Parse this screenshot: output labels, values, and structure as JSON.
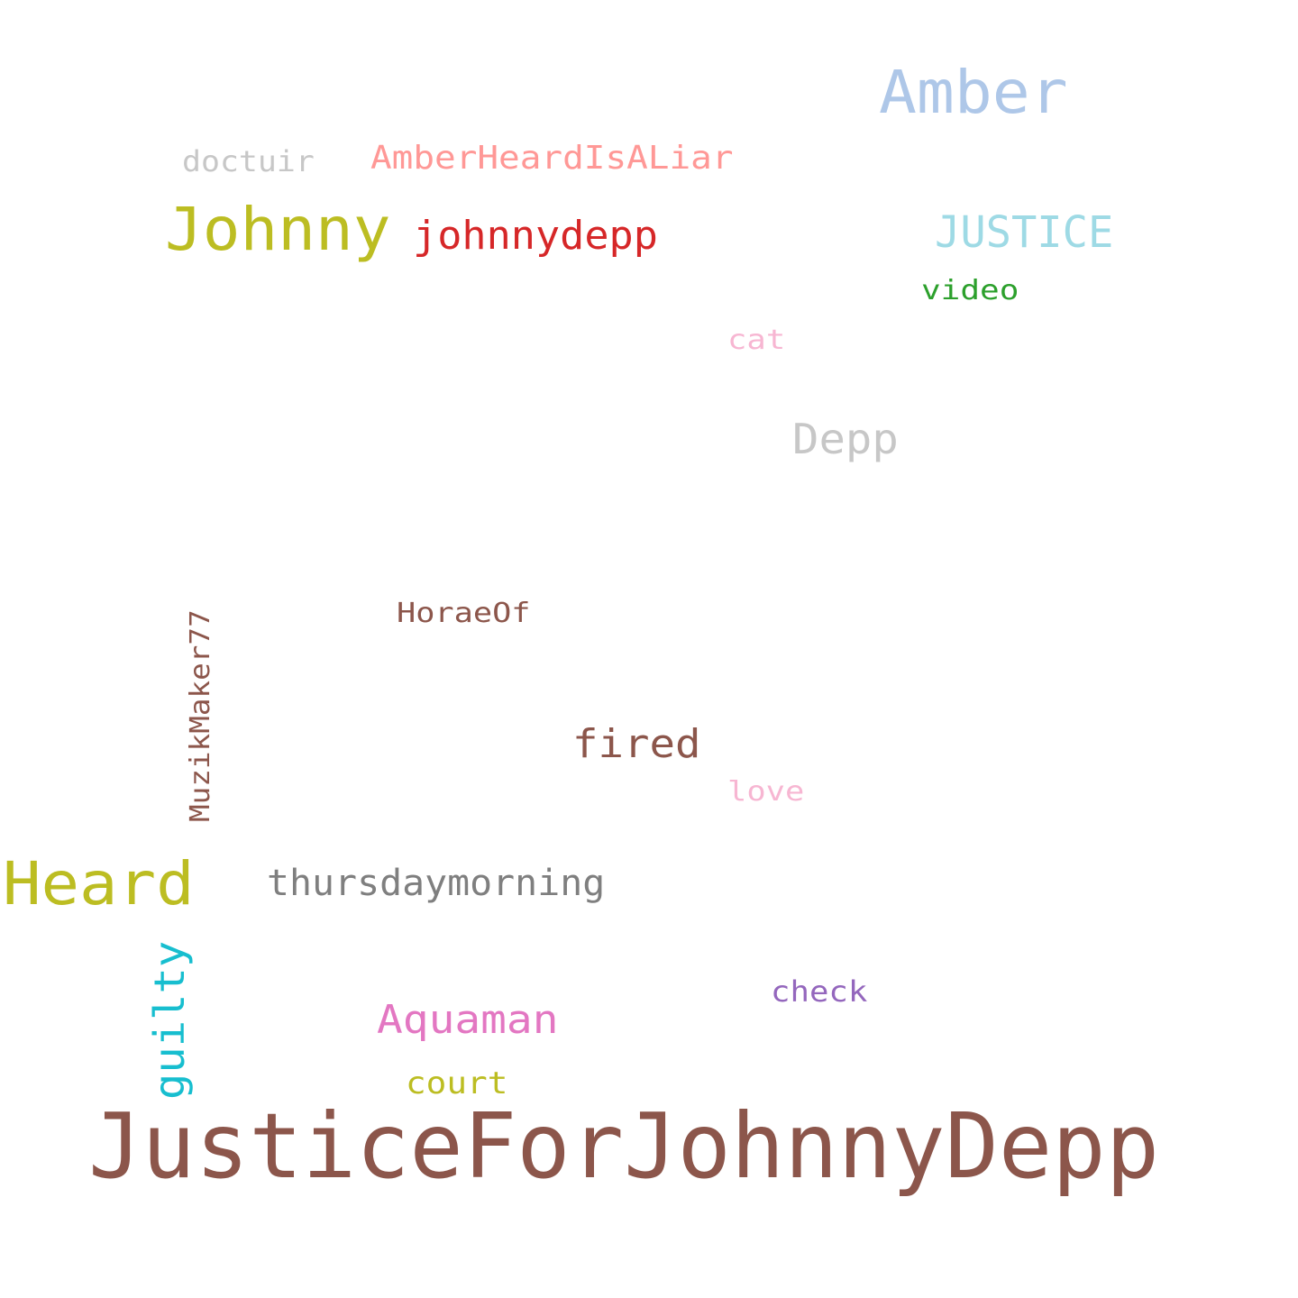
{
  "words": [
    {
      "text": "JusticeForJohnnyDepp",
      "color": "#8c564b",
      "rotated": false
    },
    {
      "text": "Amber",
      "color": "#aec7e8",
      "rotated": false
    },
    {
      "text": "Johnny",
      "color": "#bcbd22",
      "rotated": false
    },
    {
      "text": "Heard",
      "color": "#bcbd22",
      "rotated": false
    },
    {
      "text": "johnnydepp",
      "color": "#d62728",
      "rotated": false
    },
    {
      "text": "JUSTICE",
      "color": "#9edae5",
      "rotated": false
    },
    {
      "text": "AmberHeardIsALiar",
      "color": "#ff9896",
      "rotated": false
    },
    {
      "text": "doctuir",
      "color": "#c7c7c7",
      "rotated": false
    },
    {
      "text": "video",
      "color": "#2ca02c",
      "rotated": false
    },
    {
      "text": "cat",
      "color": "#f7b6d2",
      "rotated": false
    },
    {
      "text": "Depp",
      "color": "#c7c7c7",
      "rotated": false
    },
    {
      "text": "HoraeOf",
      "color": "#8c564b",
      "rotated": false
    },
    {
      "text": "MuzikMaker77",
      "color": "#8c564b",
      "rotated": true
    },
    {
      "text": "fired",
      "color": "#8c564b",
      "rotated": false
    },
    {
      "text": "love",
      "color": "#f7b6d2",
      "rotated": false
    },
    {
      "text": "thursdaymorning",
      "color": "#7f7f7f",
      "rotated": false
    },
    {
      "text": "guilty",
      "color": "#17becf",
      "rotated": true
    },
    {
      "text": "check",
      "color": "#9467bd",
      "rotated": false
    },
    {
      "text": "Aquaman",
      "color": "#e377c2",
      "rotated": false
    },
    {
      "text": "court",
      "color": "#bcbd22",
      "rotated": false
    }
  ]
}
